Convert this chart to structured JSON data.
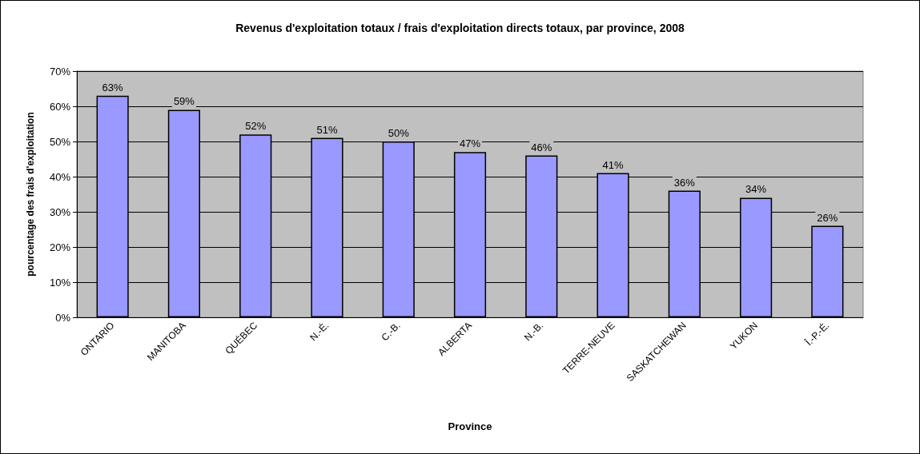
{
  "chart_data": {
    "type": "bar",
    "title": "Revenus d'exploitation totaux / frais d'exploitation directs totaux, par province, 2008",
    "xlabel": "Province",
    "ylabel": "pourcentage des frais d'exploitation",
    "categories": [
      "ONTARIO",
      "MANITOBA",
      "QUÉBEC",
      "N.-É.",
      "C.-B.",
      "ALBERTA",
      "N.-B.",
      "TERRE-NEUVE",
      "SASKATCHEWAN",
      "YUKON",
      "Î.-P.-É."
    ],
    "values": [
      63,
      59,
      52,
      51,
      50,
      47,
      46,
      41,
      36,
      34,
      26
    ],
    "value_labels": [
      "63%",
      "59%",
      "52%",
      "51%",
      "50%",
      "47%",
      "46%",
      "41%",
      "36%",
      "34%",
      "26%"
    ],
    "color": "#9999ff",
    "ylim": [
      0,
      70
    ],
    "yticks": [
      {
        "value": 0,
        "label": "0%"
      },
      {
        "value": 10,
        "label": "10%"
      },
      {
        "value": 20,
        "label": "20%"
      },
      {
        "value": 30,
        "label": "30%"
      },
      {
        "value": 40,
        "label": "40%"
      },
      {
        "value": 50,
        "label": "50%"
      },
      {
        "value": 60,
        "label": "60%"
      },
      {
        "value": 70,
        "label": "70%"
      }
    ],
    "grid": "y"
  }
}
